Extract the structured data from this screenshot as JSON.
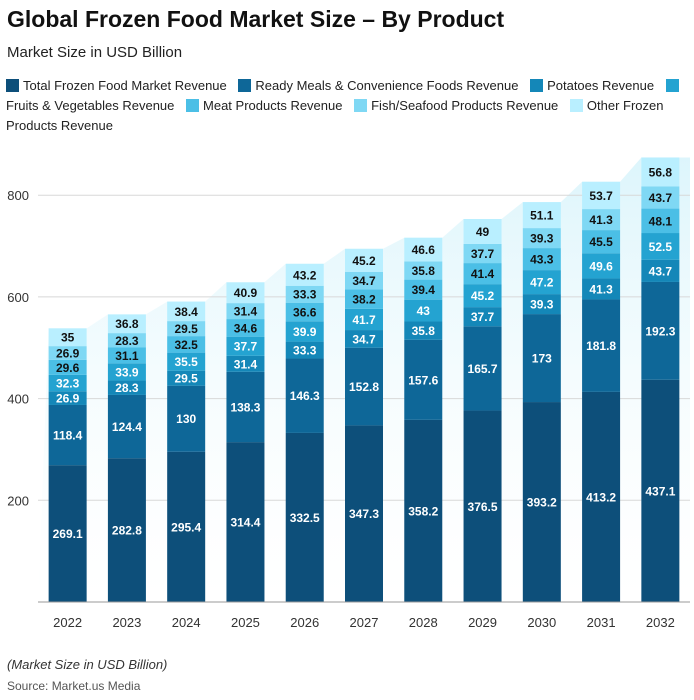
{
  "chart_data": {
    "type": "bar",
    "stacked": true,
    "title": "Global Frozen Food Market Size – By Product",
    "subtitle": "Market Size in USD Billion",
    "xlabel": "",
    "ylabel": "",
    "ylim": [
      0,
      880
    ],
    "yticks": [
      200,
      400,
      600,
      800
    ],
    "grid": true,
    "legend_position": "top",
    "categories": [
      "2022",
      "2023",
      "2024",
      "2025",
      "2026",
      "2027",
      "2028",
      "2029",
      "2030",
      "2031",
      "2032"
    ],
    "series": [
      {
        "name": "Total Frozen Food Market Revenue",
        "color": "#0d4f7a",
        "text_color": "#ffffff",
        "values": [
          269.1,
          282.8,
          295.4,
          314.4,
          332.5,
          347.3,
          358.2,
          376.5,
          393.2,
          413.2,
          437.1
        ]
      },
      {
        "name": "Ready Meals & Convenience Foods Revenue",
        "color": "#0e6798",
        "text_color": "#ffffff",
        "values": [
          118.4,
          124.4,
          130,
          138.3,
          146.3,
          152.8,
          157.6,
          165.7,
          173,
          181.8,
          192.3
        ]
      },
      {
        "name": "Potatoes Revenue",
        "color": "#1487b8",
        "text_color": "#ffffff",
        "values": [
          26.9,
          28.3,
          29.5,
          31.4,
          33.3,
          34.7,
          35.8,
          37.7,
          39.3,
          41.3,
          43.7
        ]
      },
      {
        "name": "Fruits & Vegetables Revenue",
        "color": "#24a3d1",
        "text_color": "#ffffff",
        "values": [
          32.3,
          33.9,
          35.5,
          37.7,
          39.9,
          41.7,
          43,
          45.2,
          47.2,
          49.6,
          52.5
        ]
      },
      {
        "name": "Meat Products Revenue",
        "color": "#4bbfe6",
        "text_color": "#111111",
        "values": [
          29.6,
          31.1,
          32.5,
          34.6,
          36.6,
          38.2,
          39.4,
          41.4,
          43.3,
          45.5,
          48.1
        ]
      },
      {
        "name": "Fish/Seafood Products Revenue",
        "color": "#7fd8f4",
        "text_color": "#111111",
        "values": [
          26.9,
          28.3,
          29.5,
          31.4,
          33.3,
          34.7,
          35.8,
          37.7,
          39.3,
          41.3,
          43.7
        ]
      },
      {
        "name": "Other Frozen Products Revenue",
        "color": "#b9efff",
        "text_color": "#111111",
        "values": [
          35,
          36.8,
          38.4,
          40.9,
          43.2,
          45.2,
          46.6,
          49,
          51.1,
          53.7,
          56.8
        ]
      }
    ],
    "footnote": "(Market Size in USD Billion)",
    "source": "Source: Market.us Media"
  }
}
